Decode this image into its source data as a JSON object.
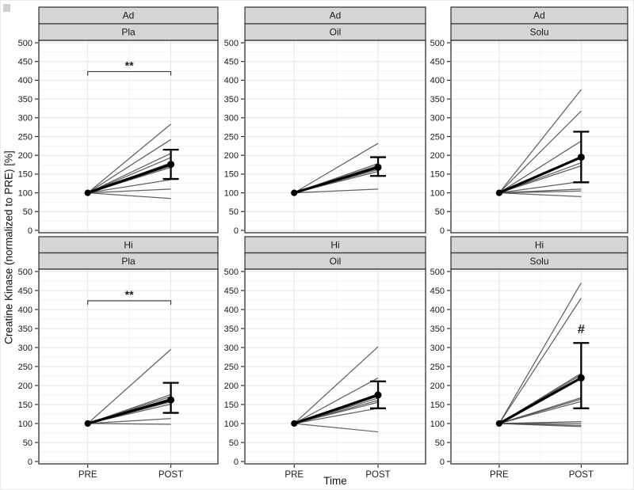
{
  "style": {
    "strip_bg": "#d5d5d5",
    "panel_border": "#2f2f2f",
    "grid_major": "#e4e4e4",
    "grid_minor": "#f2f2f2",
    "individual_line": "#454545",
    "mean_line": "#000000",
    "text_color": "#1a1a1a"
  },
  "chart_data": {
    "type": "line",
    "description": "Individual PRE-to-POST lines with group mean and error bars, faceted 2 rows x 3 columns",
    "x_categories": [
      "PRE",
      "POST"
    ],
    "xlabel": "Time",
    "ylabel": "Creatine Kinase (normalized to PRE) [%]",
    "ylim": [
      0,
      500
    ],
    "y_tick_step": 50,
    "y_minor_step": 25,
    "grid": true,
    "panels": [
      {
        "strip_labels": [
          "Ad",
          "Pla"
        ],
        "pre_value": 100,
        "individual_post_values": [
          283,
          242,
          205,
          194,
          180,
          172,
          168,
          135,
          110,
          85
        ],
        "mean_post": 176,
        "error_low": 137,
        "error_high": 215,
        "significance": {
          "kind": "bracket",
          "label": "**",
          "y": 423
        }
      },
      {
        "strip_labels": [
          "Ad",
          "Oil"
        ],
        "pre_value": 100,
        "individual_post_values": [
          232,
          178,
          173,
          170,
          166,
          162,
          157,
          110
        ],
        "mean_post": 168,
        "error_low": 145,
        "error_high": 195,
        "significance": null
      },
      {
        "strip_labels": [
          "Ad",
          "Solu"
        ],
        "pre_value": 100,
        "individual_post_values": [
          375,
          318,
          238,
          196,
          180,
          172,
          130,
          110,
          105,
          90
        ],
        "mean_post": 195,
        "error_low": 128,
        "error_high": 263,
        "significance": null
      },
      {
        "strip_labels": [
          "Hi",
          "Pla"
        ],
        "pre_value": 100,
        "individual_post_values": [
          295,
          176,
          171,
          166,
          161,
          157,
          151,
          113,
          98
        ],
        "mean_post": 162,
        "error_low": 128,
        "error_high": 207,
        "significance": {
          "kind": "bracket",
          "label": "**",
          "y": 423
        }
      },
      {
        "strip_labels": [
          "Hi",
          "Oil"
        ],
        "pre_value": 100,
        "individual_post_values": [
          302,
          220,
          178,
          172,
          167,
          161,
          156,
          140,
          78
        ],
        "mean_post": 175,
        "error_low": 140,
        "error_high": 211,
        "significance": null
      },
      {
        "strip_labels": [
          "Hi",
          "Solu"
        ],
        "pre_value": 100,
        "individual_post_values": [
          470,
          430,
          232,
          228,
          168,
          164,
          158,
          105,
          100,
          95,
          92
        ],
        "mean_post": 220,
        "error_low": 140,
        "error_high": 312,
        "significance": {
          "kind": "hash",
          "label": "#",
          "y": 350
        }
      }
    ]
  }
}
